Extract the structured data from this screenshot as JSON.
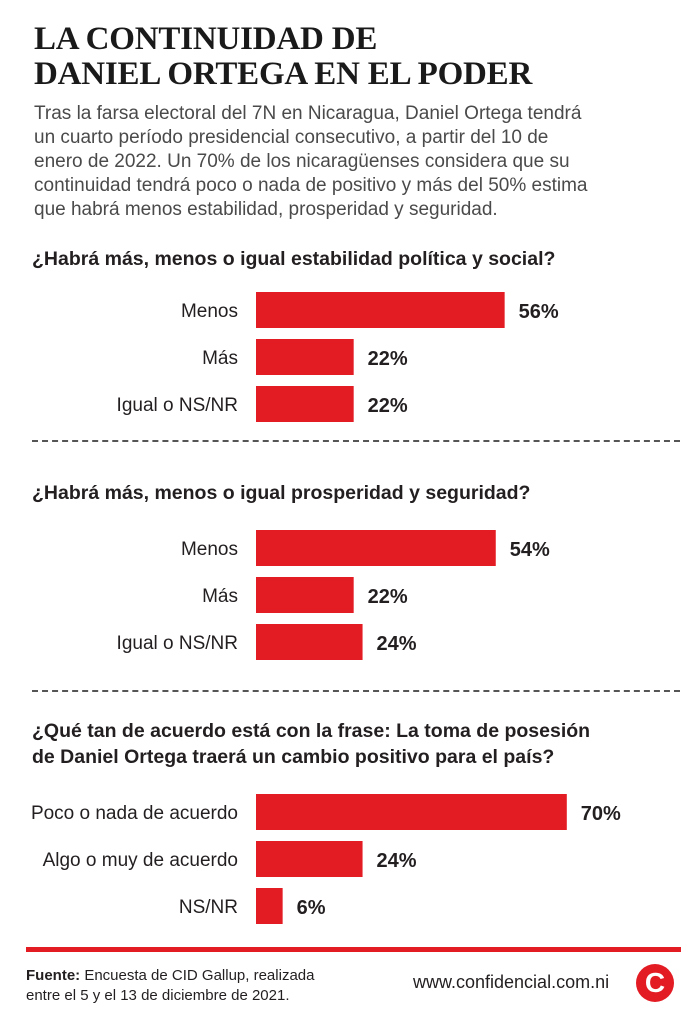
{
  "title": {
    "line1": "LA CONTINUIDAD DE",
    "line2": "DANIEL ORTEGA EN EL PODER"
  },
  "intro": {
    "lines": [
      "Tras la farsa electoral del 7N en Nicaragua, Daniel Ortega tendrá",
      "un cuarto período presidencial consecutivo, a partir del 10 de",
      "enero de 2022. Un 70% de los nicaragüenses considera que su",
      "continuidad tendrá poco o nada de positivo y más del 50% estima",
      "que habrá menos estabilidad, prosperidad y seguridad."
    ]
  },
  "colors": {
    "bar": "#e31b23",
    "text": "#231f20",
    "rule": "#e31b23"
  },
  "chart_data": [
    {
      "type": "bar",
      "orientation": "horizontal",
      "title": "¿Habrá más, menos o igual estabilidad política y social?",
      "title_lines": [
        "¿Habrá más, menos o igual estabilidad política y social?"
      ],
      "categories": [
        "Menos",
        "Más",
        "Igual o NS/NR"
      ],
      "values": [
        56,
        22,
        22
      ],
      "value_labels": [
        "56%",
        "22%",
        "22%"
      ],
      "unit": "%",
      "xlim": [
        0,
        100
      ],
      "grid": false
    },
    {
      "type": "bar",
      "orientation": "horizontal",
      "title": "¿Habrá más, menos o igual prosperidad y seguridad?",
      "title_lines": [
        "¿Habrá más, menos o igual prosperidad y seguridad?"
      ],
      "categories": [
        "Menos",
        "Más",
        "Igual o NS/NR"
      ],
      "values": [
        54,
        22,
        24
      ],
      "value_labels": [
        "54%",
        "22%",
        "24%"
      ],
      "unit": "%",
      "xlim": [
        0,
        100
      ],
      "grid": false
    },
    {
      "type": "bar",
      "orientation": "horizontal",
      "title": "¿Qué tan de acuerdo está con la frase: La toma de posesión de Daniel Ortega traerá un cambio positivo para el país?",
      "title_lines": [
        "¿Qué tan de acuerdo está con la frase: La toma de posesión",
        "de Daniel Ortega traerá un cambio positivo para el país?"
      ],
      "categories": [
        "Poco o nada de acuerdo",
        "Algo o muy de acuerdo",
        "NS/NR"
      ],
      "values": [
        70,
        24,
        6
      ],
      "value_labels": [
        "70%",
        "24%",
        "6%"
      ],
      "unit": "%",
      "xlim": [
        0,
        100
      ],
      "grid": false
    }
  ],
  "footer": {
    "source_label": "Fuente:",
    "source_line1": " Encuesta de CID Gallup, realizada",
    "source_line2": "entre el 5 y el 13 de diciembre de 2021.",
    "website": "www.confidencial.com.ni",
    "logo_letter": "C"
  }
}
